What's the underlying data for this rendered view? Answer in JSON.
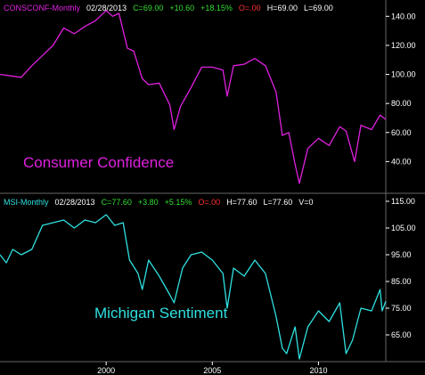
{
  "colors": {
    "background": "#000000",
    "consumer_confidence": "#e020e0",
    "michigan_sentiment": "#30e0e0",
    "axis_text": "#ffffff",
    "grid": "#666666",
    "gain": "#33dd33",
    "flat": "#ff3030"
  },
  "headers": {
    "top": {
      "symbol": "CONSCONF-Monthly",
      "date": "02/28/2013",
      "close": "C=69.00",
      "change": "+10.60",
      "pct": "+18.15%",
      "open": "O=.00",
      "high": "H=69.00",
      "low": "L=69.00"
    },
    "bottom": {
      "symbol": "MSI-Monthly",
      "date": "02/28/2013",
      "close": "C=77.60",
      "change": "+3.80",
      "pct": "+5.15%",
      "open": "O=.00",
      "high": "H=77.60",
      "low": "L=77.60",
      "volume": "V=0"
    }
  },
  "chart_data": [
    {
      "type": "line",
      "series_label": "Consumer Confidence",
      "frequency": "monthly",
      "x_tick_labels": [
        "2000",
        "2005",
        "2010"
      ],
      "y_ticks": [
        40,
        60,
        80,
        100,
        120,
        140
      ],
      "y_tick_labels": [
        "40.00",
        "60.00",
        "80.00",
        "100.00",
        "120.00",
        "140.00"
      ],
      "ylim": [
        20,
        150
      ],
      "x_range": [
        1995.0,
        2013.17
      ],
      "x": [
        1995.0,
        1995.5,
        1996.0,
        1996.5,
        1997.0,
        1997.5,
        1998.0,
        1998.5,
        1999.0,
        1999.5,
        2000.0,
        2000.3,
        2000.6,
        2001.0,
        2001.3,
        2001.7,
        2002.0,
        2002.5,
        2003.0,
        2003.2,
        2003.5,
        2004.0,
        2004.5,
        2005.0,
        2005.5,
        2005.7,
        2006.0,
        2006.5,
        2007.0,
        2007.5,
        2008.0,
        2008.3,
        2008.6,
        2008.9,
        2009.1,
        2009.5,
        2010.0,
        2010.5,
        2011.0,
        2011.3,
        2011.7,
        2012.0,
        2012.5,
        2012.9,
        2013.17
      ],
      "y": [
        100.0,
        99.0,
        98.0,
        106.0,
        113.0,
        120.0,
        132.0,
        128.0,
        133.0,
        137.0,
        144.0,
        140.0,
        142.0,
        118.0,
        116.0,
        97.0,
        93.0,
        94.0,
        79.0,
        62.0,
        78.0,
        91.0,
        105.0,
        105.0,
        103.0,
        85.0,
        106.0,
        107.0,
        111.0,
        106.0,
        88.0,
        58.0,
        60.0,
        38.0,
        25.0,
        49.0,
        56.0,
        51.0,
        64.0,
        61.0,
        40.0,
        65.0,
        62.0,
        72.0,
        69.0
      ]
    },
    {
      "type": "line",
      "series_label": "Michigan Sentiment",
      "frequency": "monthly",
      "x_tick_labels": [
        "2000",
        "2005",
        "2010"
      ],
      "y_ticks": [
        65,
        75,
        85,
        95,
        105,
        115
      ],
      "y_tick_labels": [
        "65.00",
        "75.00",
        "85.00",
        "95.00",
        "105.00",
        "115.00"
      ],
      "ylim": [
        55,
        117
      ],
      "x_range": [
        1995.0,
        2013.17
      ],
      "x": [
        1995.0,
        1995.3,
        1995.6,
        1996.0,
        1996.5,
        1997.0,
        1997.5,
        1998.0,
        1998.5,
        1999.0,
        1999.5,
        2000.0,
        2000.4,
        2000.8,
        2001.1,
        2001.5,
        2001.7,
        2002.0,
        2002.5,
        2003.0,
        2003.2,
        2003.6,
        2004.0,
        2004.5,
        2005.0,
        2005.5,
        2005.7,
        2006.0,
        2006.5,
        2007.0,
        2007.5,
        2008.0,
        2008.3,
        2008.5,
        2008.9,
        2009.1,
        2009.5,
        2010.0,
        2010.5,
        2011.0,
        2011.3,
        2011.6,
        2012.0,
        2012.5,
        2012.9,
        2013.0,
        2013.17
      ],
      "y": [
        95.0,
        92.0,
        97.0,
        95.0,
        97.0,
        106.0,
        107.0,
        108.0,
        105.0,
        108.0,
        107.0,
        110.0,
        106.0,
        107.0,
        93.0,
        88.0,
        82.0,
        93.0,
        87.0,
        80.0,
        77.0,
        90.0,
        95.0,
        96.0,
        93.0,
        88.0,
        75.0,
        90.0,
        87.0,
        93.0,
        88.0,
        72.0,
        60.0,
        58.0,
        68.0,
        56.0,
        68.0,
        74.0,
        70.0,
        77.0,
        58.0,
        63.0,
        75.0,
        74.0,
        82.0,
        74.0,
        77.6
      ]
    }
  ]
}
